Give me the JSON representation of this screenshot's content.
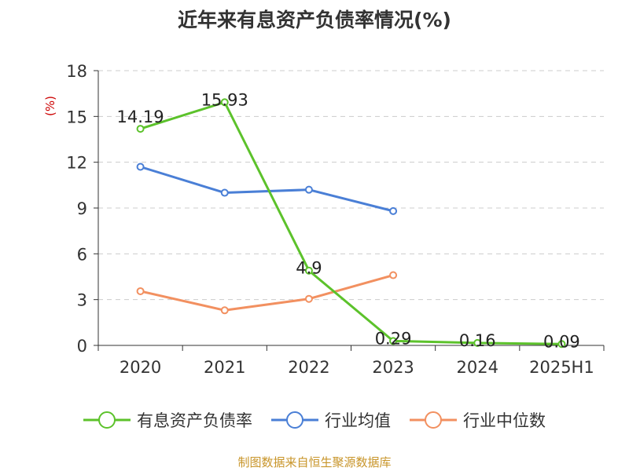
{
  "chart_data": {
    "type": "line",
    "title": "近年来有息资产负债率情况(%)",
    "ylabel": "(%)",
    "ylim": [
      0,
      18
    ],
    "yticks": [
      0,
      3,
      6,
      9,
      12,
      15,
      18
    ],
    "categories": [
      "2020",
      "2021",
      "2022",
      "2023",
      "2024",
      "2025H1"
    ],
    "grid": true,
    "legend_position": "bottom",
    "series": [
      {
        "name": "有息资产负债率",
        "color": "#5cc22b",
        "values": [
          14.19,
          15.93,
          4.9,
          0.29,
          0.16,
          0.09
        ],
        "data_labels": [
          "14.19",
          "15.93",
          "4.9",
          "0.29",
          "0.16",
          "0.09"
        ]
      },
      {
        "name": "行业均值",
        "color": "#4a7fd6",
        "values": [
          11.7,
          10.0,
          10.2,
          8.8,
          null,
          null
        ]
      },
      {
        "name": "行业中位数",
        "color": "#f29060",
        "values": [
          3.55,
          2.3,
          3.05,
          4.6,
          null,
          null
        ]
      }
    ]
  },
  "source": "制图数据来自恒生聚源数据库"
}
